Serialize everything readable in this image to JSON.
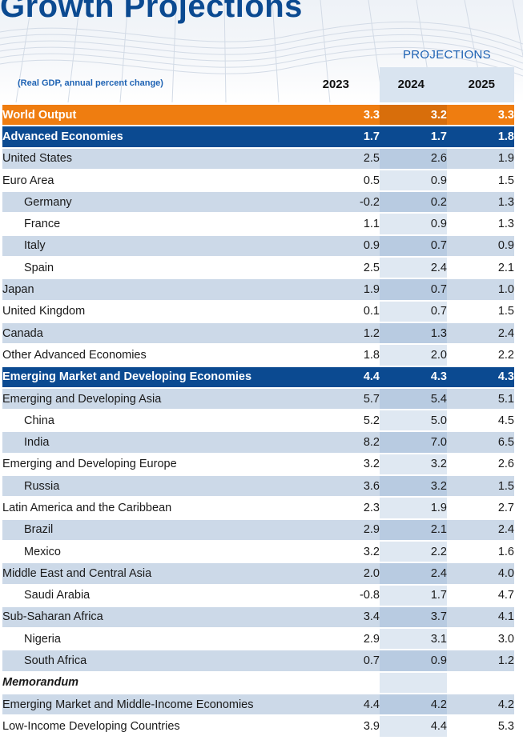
{
  "title": "Growth Projections",
  "subtitle": "(Real GDP, annual percent change)",
  "projections_label": "PROJECTIONS",
  "years": [
    "2023",
    "2024",
    "2025"
  ],
  "rows": [
    {
      "name": "World Output",
      "v": [
        "3.3",
        "3.2",
        "3.3"
      ]
    },
    {
      "name": "Advanced Economies",
      "v": [
        "1.7",
        "1.7",
        "1.8"
      ]
    },
    {
      "name": "United States",
      "v": [
        "2.5",
        "2.6",
        "1.9"
      ]
    },
    {
      "name": "Euro Area",
      "v": [
        "0.5",
        "0.9",
        "1.5"
      ]
    },
    {
      "name": "Germany",
      "v": [
        "-0.2",
        "0.2",
        "1.3"
      ]
    },
    {
      "name": "France",
      "v": [
        "1.1",
        "0.9",
        "1.3"
      ]
    },
    {
      "name": "Italy",
      "v": [
        "0.9",
        "0.7",
        "0.9"
      ]
    },
    {
      "name": "Spain",
      "v": [
        "2.5",
        "2.4",
        "2.1"
      ]
    },
    {
      "name": "Japan",
      "v": [
        "1.9",
        "0.7",
        "1.0"
      ]
    },
    {
      "name": "United Kingdom",
      "v": [
        "0.1",
        "0.7",
        "1.5"
      ]
    },
    {
      "name": "Canada",
      "v": [
        "1.2",
        "1.3",
        "2.4"
      ]
    },
    {
      "name": "Other Advanced Economies",
      "v": [
        "1.8",
        "2.0",
        "2.2"
      ]
    },
    {
      "name": "Emerging Market and Developing Economies",
      "v": [
        "4.4",
        "4.3",
        "4.3"
      ]
    },
    {
      "name": "Emerging and Developing Asia",
      "v": [
        "5.7",
        "5.4",
        "5.1"
      ]
    },
    {
      "name": "China",
      "v": [
        "5.2",
        "5.0",
        "4.5"
      ]
    },
    {
      "name": "India",
      "v": [
        "8.2",
        "7.0",
        "6.5"
      ]
    },
    {
      "name": "Emerging and Developing Europe",
      "v": [
        "3.2",
        "3.2",
        "2.6"
      ]
    },
    {
      "name": "Russia",
      "v": [
        "3.6",
        "3.2",
        "1.5"
      ]
    },
    {
      "name": "Latin America and the Caribbean",
      "v": [
        "2.3",
        "1.9",
        "2.7"
      ]
    },
    {
      "name": "Brazil",
      "v": [
        "2.9",
        "2.1",
        "2.4"
      ]
    },
    {
      "name": "Mexico",
      "v": [
        "3.2",
        "2.2",
        "1.6"
      ]
    },
    {
      "name": "Middle East and Central Asia",
      "v": [
        "2.0",
        "2.4",
        "4.0"
      ]
    },
    {
      "name": "Saudi Arabia",
      "v": [
        "-0.8",
        "1.7",
        "4.7"
      ]
    },
    {
      "name": "Sub-Saharan Africa",
      "v": [
        "3.4",
        "3.7",
        "4.1"
      ]
    },
    {
      "name": "Nigeria",
      "v": [
        "2.9",
        "3.1",
        "3.0"
      ]
    },
    {
      "name": "South Africa",
      "v": [
        "0.7",
        "0.9",
        "1.2"
      ]
    },
    {
      "name": "Memorandum",
      "v": [
        "",
        "",
        ""
      ]
    },
    {
      "name": "Emerging Market and Middle-Income Economies",
      "v": [
        "4.4",
        "4.2",
        "4.2"
      ]
    },
    {
      "name": "Low-Income Developing Countries",
      "v": [
        "3.9",
        "4.4",
        "5.3"
      ]
    }
  ]
}
